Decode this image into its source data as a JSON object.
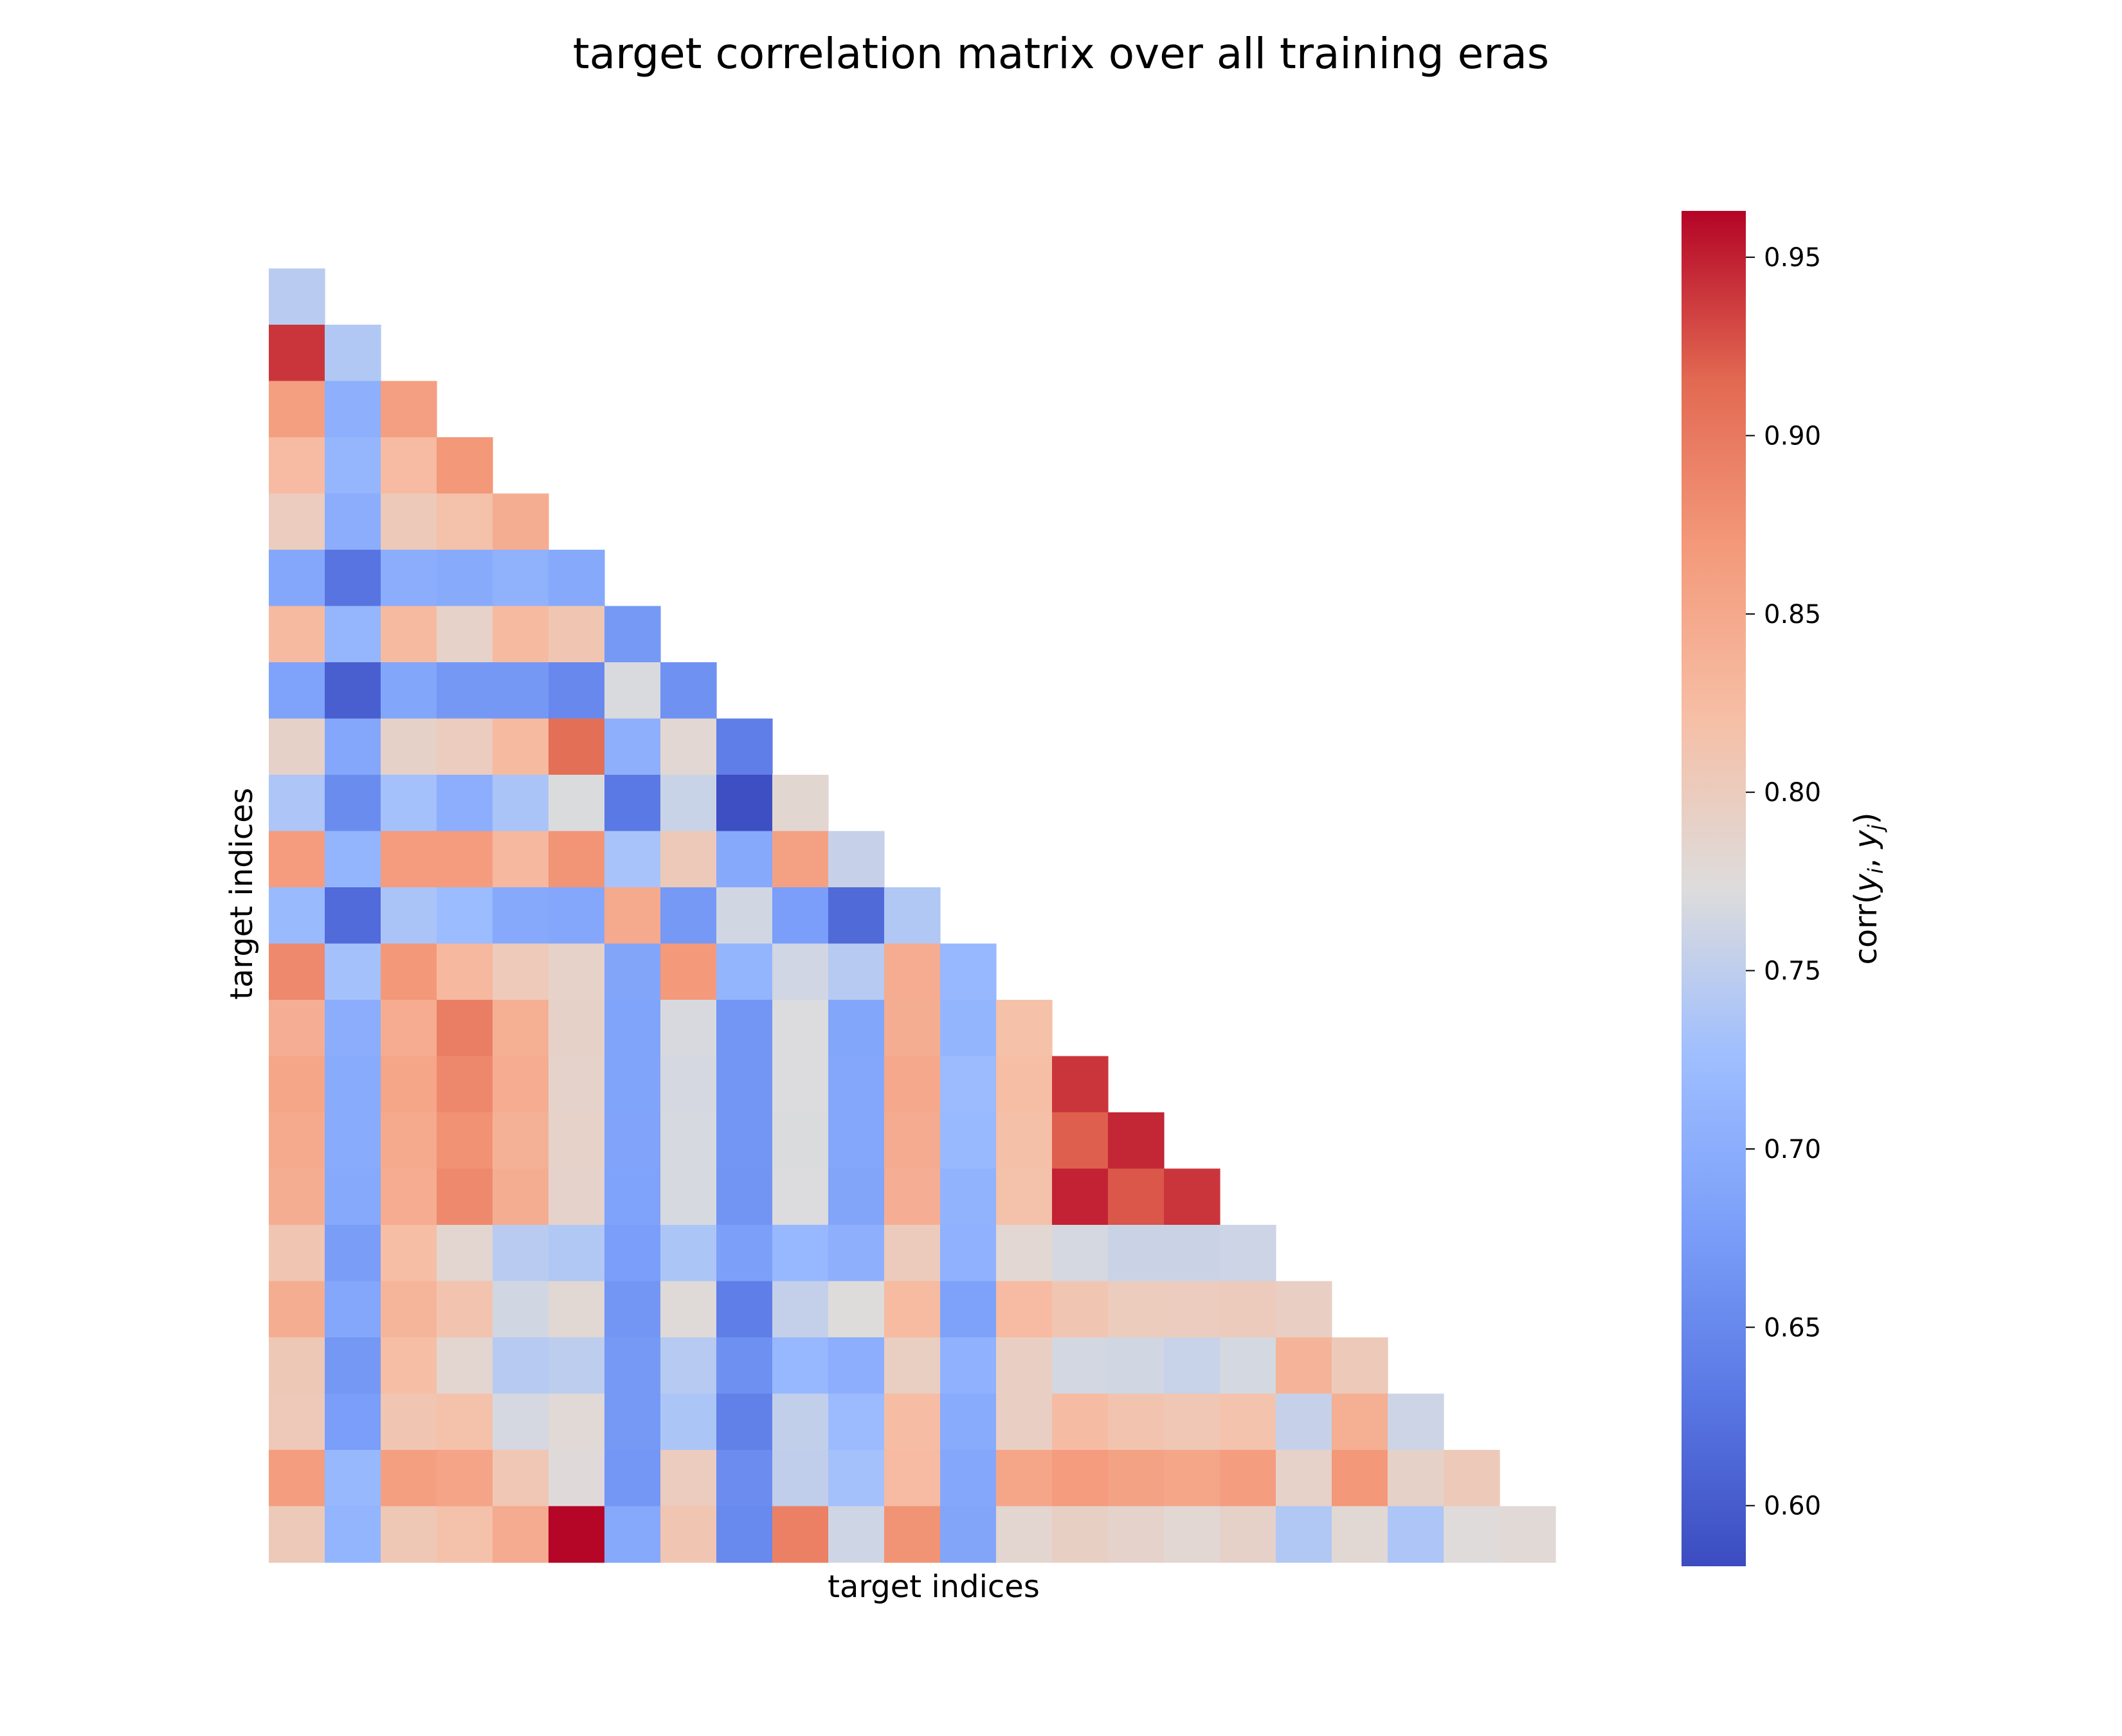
{
  "chart_data": {
    "type": "heatmap",
    "title": "target correlation matrix over all training eras",
    "xlabel": "target indices",
    "ylabel": "target indices",
    "colorbar_label": "corr(y_i, y_j)",
    "colorbar_ticks": [
      0.6,
      0.65,
      0.7,
      0.75,
      0.8,
      0.85,
      0.9,
      0.95
    ],
    "colorbar_range": [
      0.583,
      0.963
    ],
    "colormap": "coolwarm",
    "mask": "lower triangle (k=-1), diagonal hidden",
    "matrix_lower": [
      [
        0.746
      ],
      [
        0.94,
        0.74
      ],
      [
        0.862,
        0.703,
        0.861
      ],
      [
        0.825,
        0.713,
        0.825,
        0.87
      ],
      [
        0.799,
        0.7,
        0.804,
        0.817,
        0.844
      ],
      [
        0.69,
        0.626,
        0.7,
        0.695,
        0.707,
        0.693
      ],
      [
        0.827,
        0.713,
        0.827,
        0.79,
        0.827,
        0.809,
        0.671
      ],
      [
        0.683,
        0.604,
        0.688,
        0.669,
        0.669,
        0.65,
        0.77,
        0.661
      ],
      [
        0.791,
        0.69,
        0.791,
        0.799,
        0.827,
        0.91,
        0.702,
        0.782,
        0.638
      ],
      [
        0.737,
        0.655,
        0.731,
        0.701,
        0.735,
        0.771,
        0.632,
        0.758,
        0.586,
        0.783
      ],
      [
        0.866,
        0.711,
        0.866,
        0.866,
        0.829,
        0.874,
        0.733,
        0.804,
        0.694,
        0.859,
        0.756
      ],
      [
        0.72,
        0.617,
        0.735,
        0.722,
        0.694,
        0.691,
        0.847,
        0.671,
        0.764,
        0.677,
        0.615,
        0.74
      ],
      [
        0.884,
        0.731,
        0.87,
        0.829,
        0.803,
        0.79,
        0.687,
        0.868,
        0.711,
        0.763,
        0.744,
        0.845,
        0.716
      ],
      [
        0.842,
        0.7,
        0.845,
        0.895,
        0.841,
        0.791,
        0.685,
        0.769,
        0.666,
        0.772,
        0.688,
        0.843,
        0.711,
        0.818
      ],
      [
        0.854,
        0.697,
        0.852,
        0.885,
        0.845,
        0.789,
        0.685,
        0.767,
        0.667,
        0.772,
        0.69,
        0.85,
        0.721,
        0.822,
        0.94
      ],
      [
        0.848,
        0.697,
        0.848,
        0.876,
        0.838,
        0.79,
        0.686,
        0.768,
        0.667,
        0.771,
        0.69,
        0.846,
        0.718,
        0.819,
        0.92,
        0.947
      ],
      [
        0.844,
        0.693,
        0.845,
        0.884,
        0.843,
        0.789,
        0.684,
        0.768,
        0.665,
        0.772,
        0.687,
        0.842,
        0.708,
        0.817,
        0.949,
        0.924,
        0.94
      ],
      [
        0.81,
        0.676,
        0.822,
        0.784,
        0.746,
        0.74,
        0.677,
        0.736,
        0.68,
        0.716,
        0.703,
        0.801,
        0.706,
        0.782,
        0.767,
        0.759,
        0.759,
        0.76
      ],
      [
        0.843,
        0.69,
        0.833,
        0.813,
        0.764,
        0.781,
        0.666,
        0.777,
        0.638,
        0.754,
        0.774,
        0.826,
        0.682,
        0.825,
        0.809,
        0.8,
        0.799,
        0.801,
        0.795
      ],
      [
        0.806,
        0.67,
        0.822,
        0.784,
        0.744,
        0.749,
        0.671,
        0.744,
        0.66,
        0.716,
        0.701,
        0.796,
        0.706,
        0.795,
        0.765,
        0.764,
        0.757,
        0.766,
        0.835,
        0.804
      ],
      [
        0.805,
        0.677,
        0.809,
        0.817,
        0.767,
        0.778,
        0.671,
        0.736,
        0.64,
        0.752,
        0.721,
        0.823,
        0.696,
        0.795,
        0.824,
        0.812,
        0.808,
        0.814,
        0.756,
        0.841,
        0.76
      ],
      [
        0.864,
        0.717,
        0.862,
        0.855,
        0.808,
        0.776,
        0.668,
        0.799,
        0.656,
        0.751,
        0.73,
        0.825,
        0.691,
        0.853,
        0.866,
        0.858,
        0.852,
        0.864,
        0.79,
        0.87,
        0.791,
        0.804
      ],
      [
        0.804,
        0.711,
        0.807,
        0.817,
        0.846,
        0.962,
        0.693,
        0.81,
        0.651,
        0.893,
        0.762,
        0.875,
        0.687,
        0.784,
        0.794,
        0.788,
        0.782,
        0.791,
        0.74,
        0.78,
        0.737,
        0.775,
        0.778
      ]
    ]
  }
}
